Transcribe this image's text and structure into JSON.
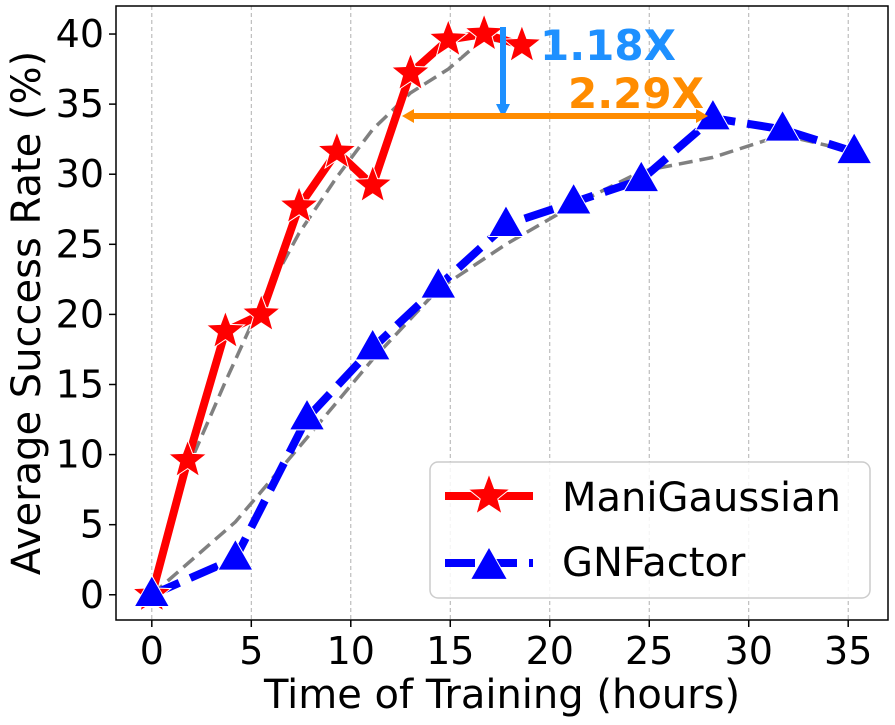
{
  "chart_data": {
    "type": "line",
    "xlabel": "Time of Training (hours)",
    "ylabel": "Average Success Rate (%)",
    "xlim": [
      -1.8,
      37.0
    ],
    "ylim": [
      -1.8,
      42.0
    ],
    "xticks": [
      0,
      5,
      10,
      15,
      20,
      25,
      30,
      35
    ],
    "yticks": [
      0,
      5,
      10,
      15,
      20,
      25,
      30,
      35,
      40
    ],
    "grid": "vertical-dashed",
    "legend": "lower-right",
    "series": [
      {
        "name": "ManiGaussian",
        "color": "#ff0000",
        "marker": "star",
        "linestyle": "solid",
        "x": [
          0,
          1.8,
          3.7,
          5.5,
          7.4,
          9.3,
          11.1,
          13.0,
          14.9,
          16.7,
          18.6
        ],
        "y": [
          0,
          9.6,
          18.8,
          20.0,
          27.7,
          31.6,
          29.2,
          37.2,
          39.6,
          40.0,
          39.2
        ],
        "trend": [
          0,
          9.0,
          15.2,
          20.8,
          25.8,
          29.8,
          33.2,
          35.8,
          37.5,
          39.7,
          39.2
        ]
      },
      {
        "name": "GNFactor",
        "color": "#0000ff",
        "marker": "triangle",
        "linestyle": "dashed",
        "x": [
          0,
          4.2,
          7.8,
          11.1,
          14.4,
          17.8,
          21.2,
          24.6,
          28.2,
          31.7,
          35.3
        ],
        "y": [
          0,
          2.6,
          12.6,
          17.6,
          22.0,
          26.4,
          28.0,
          29.6,
          34.0,
          33.2,
          31.6
        ],
        "trend": [
          0,
          5.2,
          11.2,
          16.8,
          21.8,
          25.0,
          27.8,
          30.2,
          31.2,
          32.8,
          31.6
        ]
      }
    ],
    "annotations": [
      {
        "text": "1.18X",
        "color": "#1e90ff"
      },
      {
        "text": "2.29X",
        "color": "#ff8c00"
      }
    ]
  }
}
